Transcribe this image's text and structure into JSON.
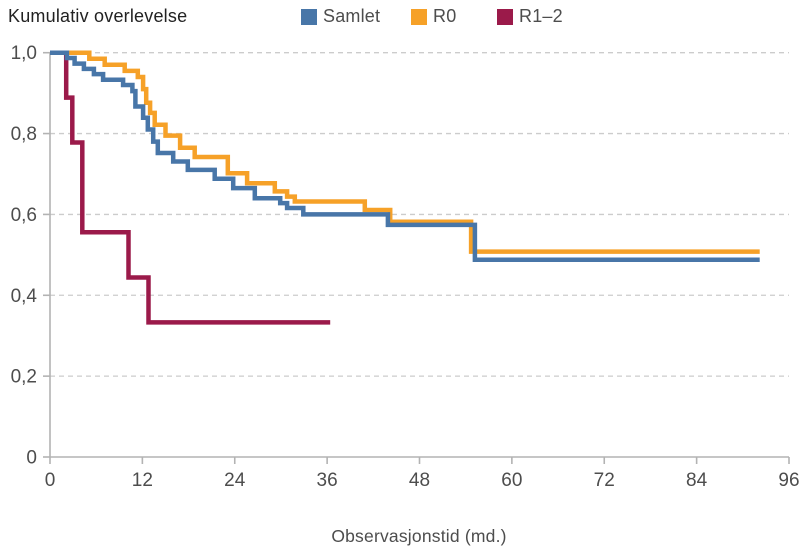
{
  "chart_data": {
    "type": "line",
    "subtype": "kaplan-meier-step-survival",
    "title": "Kumulativ overlevelse",
    "xlabel": "Observasjonstid (md.)",
    "ylabel": "Kumulativ overlevelse",
    "xlim": [
      0,
      96
    ],
    "ylim": [
      0,
      1
    ],
    "grid": "horizontal-dashed",
    "legend_position": "top",
    "axis_color": "#b3b3b3",
    "grid_color": "#cccccc",
    "xticks": [
      {
        "value": 0,
        "label": "0"
      },
      {
        "value": 12,
        "label": "12"
      },
      {
        "value": 24,
        "label": "24"
      },
      {
        "value": 36,
        "label": "36"
      },
      {
        "value": 48,
        "label": "48"
      },
      {
        "value": 60,
        "label": "60"
      },
      {
        "value": 72,
        "label": "72"
      },
      {
        "value": 84,
        "label": "84"
      },
      {
        "value": 96,
        "label": "96"
      }
    ],
    "yticks": [
      {
        "value": 0,
        "label": "0"
      },
      {
        "value": 0.2,
        "label": "0,2"
      },
      {
        "value": 0.4,
        "label": "0,4"
      },
      {
        "value": 0.6,
        "label": "0,6"
      },
      {
        "value": 0.8,
        "label": "0,8"
      },
      {
        "value": 1.0,
        "label": "1,0"
      }
    ],
    "series": [
      {
        "name": "Samlet",
        "color": "#4876a8",
        "end": 92.2,
        "points": [
          [
            0,
            1.0
          ],
          [
            2.2,
            0.987
          ],
          [
            3.2,
            0.973
          ],
          [
            4.4,
            0.96
          ],
          [
            5.7,
            0.947
          ],
          [
            6.9,
            0.933
          ],
          [
            9.5,
            0.92
          ],
          [
            10.7,
            0.905
          ],
          [
            11.1,
            0.867
          ],
          [
            12.1,
            0.839
          ],
          [
            12.7,
            0.81
          ],
          [
            13.4,
            0.78
          ],
          [
            14.0,
            0.752
          ],
          [
            16.0,
            0.731
          ],
          [
            17.9,
            0.71
          ],
          [
            21.4,
            0.688
          ],
          [
            23.8,
            0.665
          ],
          [
            26.6,
            0.64
          ],
          [
            29.9,
            0.628
          ],
          [
            30.8,
            0.616
          ],
          [
            32.9,
            0.6
          ],
          [
            43.9,
            0.574
          ],
          [
            55.2,
            0.488
          ]
        ]
      },
      {
        "name": "R0",
        "color": "#f6a128",
        "end": 92.2,
        "points": [
          [
            0,
            1.0
          ],
          [
            5.1,
            0.985
          ],
          [
            7.1,
            0.97
          ],
          [
            9.7,
            0.955
          ],
          [
            11.4,
            0.94
          ],
          [
            12.1,
            0.91
          ],
          [
            12.5,
            0.876
          ],
          [
            13.0,
            0.851
          ],
          [
            13.6,
            0.822
          ],
          [
            15.0,
            0.795
          ],
          [
            16.9,
            0.765
          ],
          [
            18.8,
            0.742
          ],
          [
            23.1,
            0.702
          ],
          [
            25.6,
            0.677
          ],
          [
            29.2,
            0.657
          ],
          [
            30.8,
            0.644
          ],
          [
            31.8,
            0.632
          ],
          [
            40.9,
            0.611
          ],
          [
            44.2,
            0.582
          ],
          [
            54.7,
            0.508
          ]
        ]
      },
      {
        "name": "R1–2",
        "color": "#9b1a4a",
        "end": 36.4,
        "points": [
          [
            0,
            1.0
          ],
          [
            2.1,
            0.889
          ],
          [
            2.9,
            0.778
          ],
          [
            4.2,
            0.556
          ],
          [
            10.2,
            0.444
          ],
          [
            12.8,
            0.333
          ]
        ]
      }
    ]
  }
}
